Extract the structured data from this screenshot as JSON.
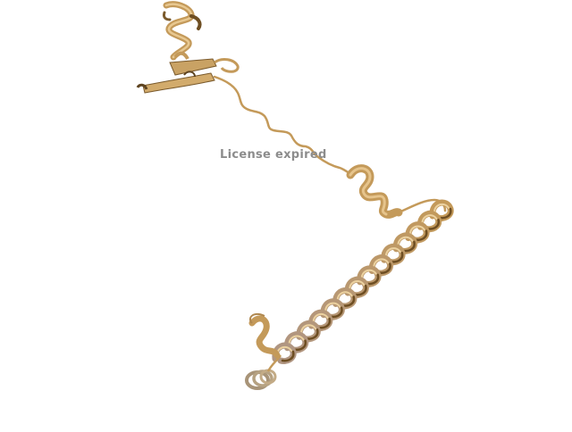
{
  "viewer": {
    "watermark": "License expired"
  },
  "render": {
    "ribbon_color": "#c8a064",
    "ribbon_light": "#e2c28a",
    "ribbon_dark": "#7a5a2c",
    "background": "#ffffff"
  }
}
